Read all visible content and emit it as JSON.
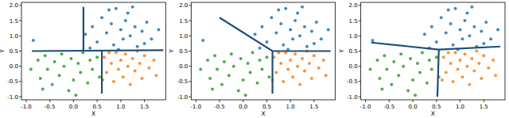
{
  "chart_data": [
    {
      "type": "scatter",
      "x_label": "X",
      "y_label": "Y",
      "xlim": [
        -1.1,
        1.95
      ],
      "ylim": [
        -1.1,
        2.1
      ],
      "xticks": [
        {
          "value": -1,
          "label": "-1.0"
        },
        {
          "value": -0.5,
          "label": "-0.5"
        },
        {
          "value": 0,
          "label": "0.0"
        },
        {
          "value": 0.5,
          "label": "0.5"
        },
        {
          "value": 1,
          "label": "1.0"
        },
        {
          "value": 1.5,
          "label": "1.5"
        }
      ],
      "yticks": [
        {
          "value": -1,
          "label": "-1.0"
        },
        {
          "value": -0.5,
          "label": "-0.5"
        },
        {
          "value": 0,
          "label": "0.0"
        },
        {
          "value": 0.5,
          "label": "0.5"
        },
        {
          "value": 1,
          "label": "1.0"
        },
        {
          "value": 1.5,
          "label": "1.5"
        },
        {
          "value": 2,
          "label": "2.0"
        }
      ],
      "series": [
        {
          "color": "#1f77b4",
          "marker": "circle",
          "x": [
            0.25,
            0.4,
            0.5,
            0.6,
            0.7,
            0.8,
            0.85,
            0.9,
            1.0,
            1.05,
            1.1,
            1.15,
            1.2,
            1.3,
            1.35,
            1.45,
            1.55,
            1.65,
            1.8,
            0.35,
            0.75,
            1.25,
            -0.85,
            0.95,
            1.5
          ],
          "values": [
            1.05,
            1.3,
            0.8,
            1.6,
            1.1,
            1.4,
            0.7,
            1.9,
            1.2,
            0.9,
            1.5,
            1.75,
            1.0,
            1.3,
            0.65,
            1.15,
            1.45,
            0.9,
            1.2,
            0.6,
            1.85,
            1.95,
            0.85,
            0.55,
            0.75
          ]
        },
        {
          "color": "#ff7f0e",
          "marker": "circle",
          "x": [
            0.65,
            0.7,
            0.8,
            0.85,
            0.9,
            0.95,
            1.0,
            1.05,
            1.1,
            1.15,
            1.2,
            1.25,
            1.3,
            1.4,
            1.45,
            1.5,
            1.6,
            1.7,
            1.75,
            0.62,
            1.35,
            0.75
          ],
          "values": [
            0.3,
            -0.2,
            0.1,
            -0.5,
            0.45,
            -0.1,
            0.2,
            -0.35,
            0.4,
            0.0,
            -0.6,
            0.25,
            -0.15,
            0.1,
            -0.4,
            0.35,
            -0.05,
            0.2,
            -0.3,
            -0.45,
            0.5,
            0.45
          ]
        },
        {
          "color": "#2ca02c",
          "marker": "circle",
          "x": [
            -0.9,
            -0.75,
            -0.7,
            -0.6,
            -0.55,
            -0.45,
            -0.4,
            -0.3,
            -0.25,
            -0.2,
            -0.1,
            -0.05,
            0.0,
            0.1,
            0.15,
            0.2,
            0.3,
            0.35,
            0.4,
            0.5,
            0.55,
            -0.65,
            0.05
          ],
          "values": [
            -0.1,
            0.2,
            -0.4,
            0.35,
            -0.1,
            -0.6,
            0.15,
            -0.3,
            0.4,
            0.0,
            -0.8,
            0.25,
            -0.45,
            0.1,
            -0.2,
            0.45,
            -0.55,
            0.2,
            -0.1,
            0.3,
            -0.35,
            -0.75,
            -0.95
          ]
        },
        {
          "type": "line",
          "color": "#1f4e79",
          "x": [
            -0.88,
            1.9,
            null,
            0.21,
            0.21,
            null,
            0.6,
            0.6
          ],
          "values": [
            0.5,
            0.53,
            null,
            0.51,
            1.95,
            null,
            0.52,
            -0.9
          ]
        }
      ]
    },
    {
      "type": "scatter",
      "x_label": "X",
      "y_label": "Y",
      "xlim": [
        -1.1,
        1.95
      ],
      "ylim": [
        -1.1,
        2.1
      ],
      "xticks": [
        {
          "value": -1,
          "label": "-1.0"
        },
        {
          "value": -0.5,
          "label": "-0.5"
        },
        {
          "value": 0,
          "label": "0.0"
        },
        {
          "value": 0.5,
          "label": "0.5"
        },
        {
          "value": 1,
          "label": "1.0"
        },
        {
          "value": 1.5,
          "label": "1.5"
        }
      ],
      "yticks": [
        {
          "value": -1,
          "label": "-1.0"
        },
        {
          "value": -0.5,
          "label": "-0.5"
        },
        {
          "value": 0,
          "label": "0.0"
        },
        {
          "value": 0.5,
          "label": "0.5"
        },
        {
          "value": 1,
          "label": "1.0"
        },
        {
          "value": 1.5,
          "label": "1.5"
        },
        {
          "value": 2,
          "label": "2.0"
        }
      ],
      "series": [
        {
          "color": "#1f77b4",
          "marker": "circle",
          "x": [
            0.25,
            0.4,
            0.5,
            0.6,
            0.7,
            0.8,
            0.85,
            0.9,
            1.0,
            1.05,
            1.1,
            1.15,
            1.2,
            1.3,
            1.35,
            1.45,
            1.55,
            1.65,
            1.8,
            0.35,
            0.75,
            1.25,
            -0.85,
            0.95,
            1.5
          ],
          "values": [
            1.05,
            1.3,
            0.8,
            1.6,
            1.1,
            1.4,
            0.7,
            1.9,
            1.2,
            0.9,
            1.5,
            1.75,
            1.0,
            1.3,
            0.65,
            1.15,
            1.45,
            0.9,
            1.2,
            0.6,
            1.85,
            1.95,
            0.85,
            0.55,
            0.75
          ]
        },
        {
          "color": "#ff7f0e",
          "marker": "circle",
          "x": [
            0.65,
            0.7,
            0.8,
            0.85,
            0.9,
            0.95,
            1.0,
            1.05,
            1.1,
            1.15,
            1.2,
            1.25,
            1.3,
            1.4,
            1.45,
            1.5,
            1.6,
            1.7,
            1.75,
            0.62,
            1.35,
            0.75
          ],
          "values": [
            0.3,
            -0.2,
            0.1,
            -0.5,
            0.45,
            -0.1,
            0.2,
            -0.35,
            0.4,
            0.0,
            -0.6,
            0.25,
            -0.15,
            0.1,
            -0.4,
            0.35,
            -0.05,
            0.2,
            -0.3,
            -0.45,
            0.5,
            0.45
          ]
        },
        {
          "color": "#2ca02c",
          "marker": "circle",
          "x": [
            -0.9,
            -0.75,
            -0.7,
            -0.6,
            -0.55,
            -0.45,
            -0.4,
            -0.3,
            -0.25,
            -0.2,
            -0.1,
            -0.05,
            0.0,
            0.1,
            0.15,
            0.2,
            0.3,
            0.35,
            0.4,
            0.5,
            0.55,
            -0.65,
            0.05
          ],
          "values": [
            -0.1,
            0.2,
            -0.4,
            0.35,
            -0.1,
            -0.6,
            0.15,
            -0.3,
            0.4,
            0.0,
            -0.8,
            0.25,
            -0.45,
            0.1,
            -0.2,
            0.45,
            -0.55,
            0.2,
            -0.1,
            0.3,
            -0.35,
            -0.75,
            -0.95
          ]
        },
        {
          "type": "line",
          "color": "#1f4e79",
          "x": [
            -0.5,
            0.62,
            1.85,
            null,
            0.62,
            0.62
          ],
          "values": [
            1.6,
            0.5,
            0.5,
            null,
            0.5,
            -0.9
          ]
        }
      ]
    },
    {
      "type": "scatter",
      "x_label": "X",
      "y_label": "Y",
      "xlim": [
        -1.1,
        1.95
      ],
      "ylim": [
        -1.1,
        2.1
      ],
      "xticks": [
        {
          "value": -1,
          "label": "-1.0"
        },
        {
          "value": -0.5,
          "label": "-0.5"
        },
        {
          "value": 0,
          "label": "0.0"
        },
        {
          "value": 0.5,
          "label": "0.5"
        },
        {
          "value": 1,
          "label": "1.0"
        },
        {
          "value": 1.5,
          "label": "1.5"
        }
      ],
      "yticks": [
        {
          "value": -1,
          "label": "-1.0"
        },
        {
          "value": -0.5,
          "label": "-0.5"
        },
        {
          "value": 0,
          "label": "0.0"
        },
        {
          "value": 0.5,
          "label": "0.5"
        },
        {
          "value": 1,
          "label": "1.0"
        },
        {
          "value": 1.5,
          "label": "1.5"
        },
        {
          "value": 2,
          "label": "2.0"
        }
      ],
      "series": [
        {
          "color": "#1f77b4",
          "marker": "circle",
          "x": [
            0.25,
            0.4,
            0.5,
            0.6,
            0.7,
            0.8,
            0.85,
            0.9,
            1.0,
            1.05,
            1.1,
            1.15,
            1.2,
            1.3,
            1.35,
            1.45,
            1.55,
            1.65,
            1.8,
            0.35,
            0.75,
            1.25,
            -0.85,
            0.95,
            1.5
          ],
          "values": [
            1.05,
            1.3,
            0.8,
            1.6,
            1.1,
            1.4,
            0.7,
            1.9,
            1.2,
            0.9,
            1.5,
            1.75,
            1.0,
            1.3,
            0.65,
            1.15,
            1.45,
            0.9,
            1.2,
            0.6,
            1.85,
            1.95,
            0.85,
            0.55,
            0.75
          ]
        },
        {
          "color": "#ff7f0e",
          "marker": "circle",
          "x": [
            0.65,
            0.7,
            0.8,
            0.85,
            0.9,
            0.95,
            1.0,
            1.05,
            1.1,
            1.15,
            1.2,
            1.25,
            1.3,
            1.4,
            1.45,
            1.5,
            1.6,
            1.7,
            1.75,
            0.62,
            1.35,
            0.75
          ],
          "values": [
            0.3,
            -0.2,
            0.1,
            -0.5,
            0.45,
            -0.1,
            0.2,
            -0.35,
            0.4,
            0.0,
            -0.6,
            0.25,
            -0.15,
            0.1,
            -0.4,
            0.35,
            -0.05,
            0.2,
            -0.3,
            -0.45,
            0.5,
            0.45
          ]
        },
        {
          "color": "#2ca02c",
          "marker": "circle",
          "x": [
            -0.9,
            -0.75,
            -0.7,
            -0.6,
            -0.55,
            -0.45,
            -0.4,
            -0.3,
            -0.25,
            -0.2,
            -0.1,
            -0.05,
            0.0,
            0.1,
            0.15,
            0.2,
            0.3,
            0.35,
            0.4,
            0.5,
            0.55,
            -0.65,
            0.05
          ],
          "values": [
            -0.1,
            0.2,
            -0.4,
            0.35,
            -0.1,
            -0.6,
            0.15,
            -0.3,
            0.4,
            0.0,
            -0.8,
            0.25,
            -0.45,
            0.1,
            -0.2,
            0.45,
            -0.55,
            0.2,
            -0.1,
            0.3,
            -0.35,
            -0.75,
            -0.95
          ]
        },
        {
          "type": "line",
          "color": "#1f4e79",
          "x": [
            -0.88,
            0.55,
            1.85,
            null,
            0.55,
            0.52
          ],
          "values": [
            0.78,
            0.55,
            0.65,
            null,
            0.55,
            -1.0
          ]
        }
      ]
    }
  ]
}
